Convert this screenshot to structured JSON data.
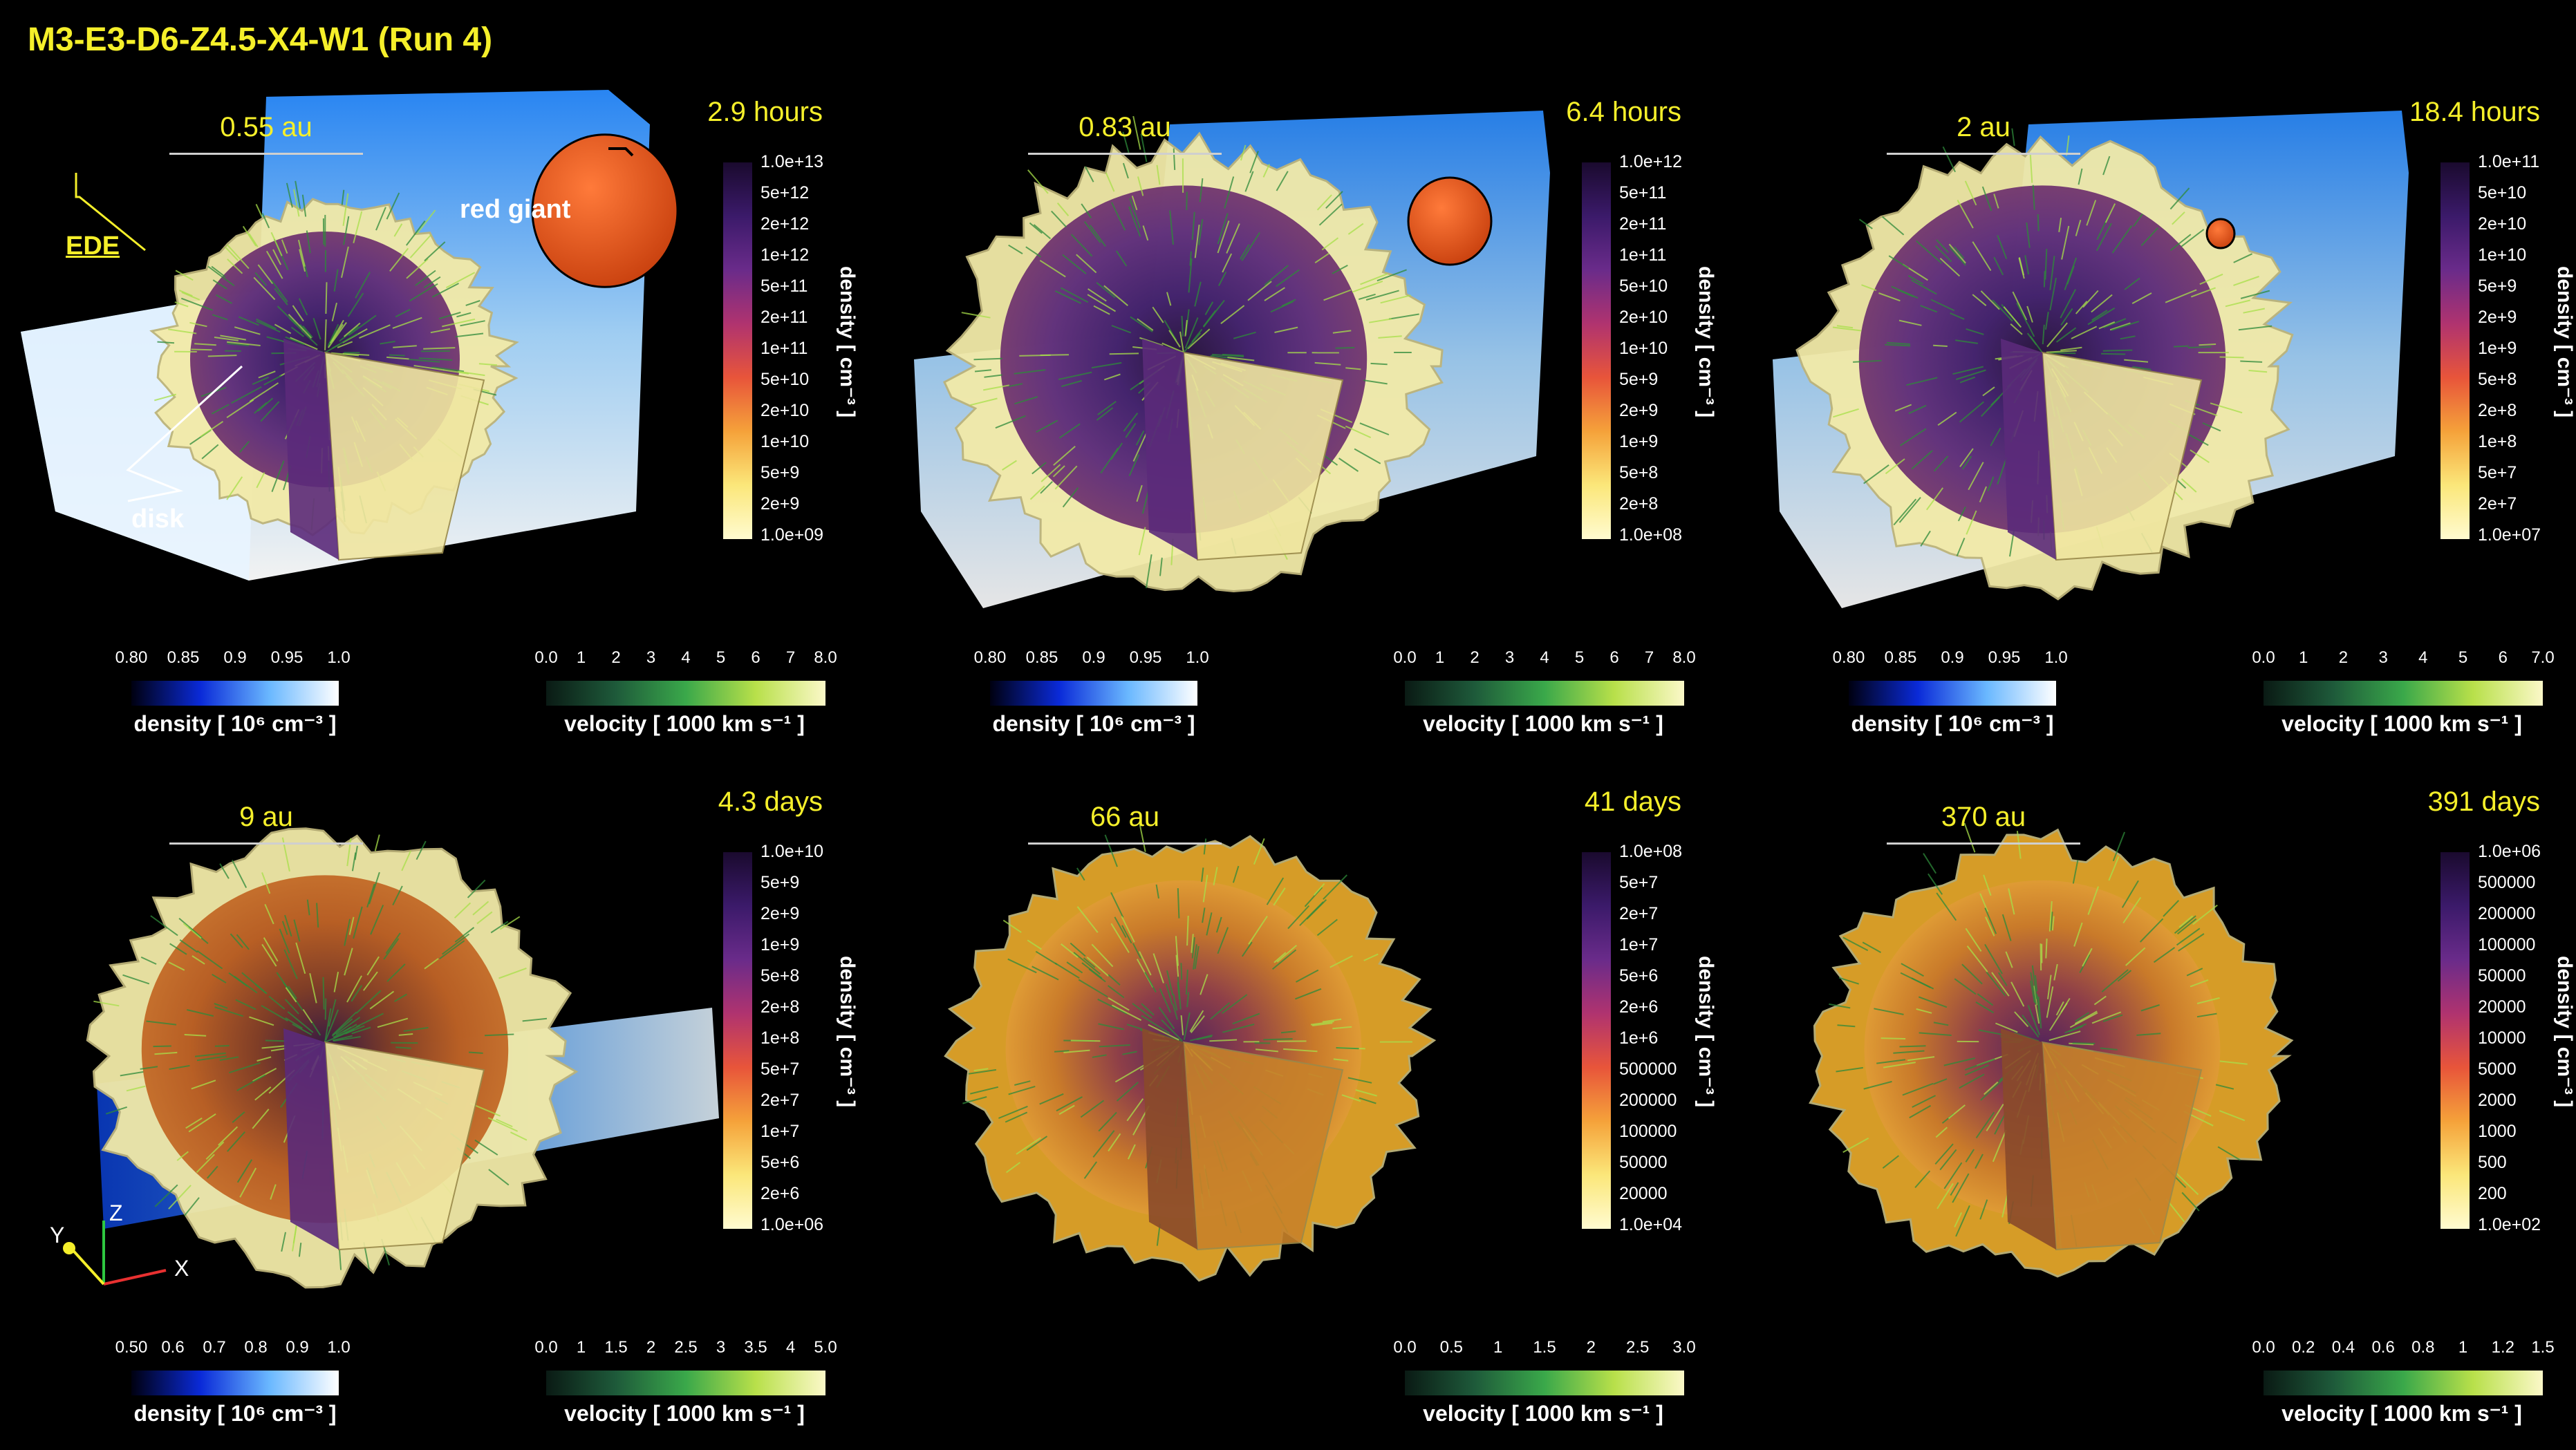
{
  "title": "M3-E3-D6-Z4.5-X4-W1 (Run 4)",
  "colors": {
    "title": "#f5ef2a",
    "label": "#f5ef2a",
    "ede_color": "#ffffff",
    "red_giant": "#e8521a",
    "ejecta": "#f2eaa8",
    "density_purple": "#3b1a6a"
  },
  "panels": [
    {
      "scale": "0.55 au",
      "time": "2.9 hours",
      "density_ticks": [
        "1.0e+13",
        "5e+12",
        "2e+12",
        "1e+12",
        "5e+11",
        "2e+11",
        "1e+11",
        "5e+10",
        "2e+10",
        "1e+10",
        "5e+9",
        "2e+9",
        "1.0e+09"
      ],
      "density_title": "density [ cm⁻³ ]",
      "ede_ticks": [
        "0.80",
        "0.85",
        "0.9",
        "0.95",
        "1.0"
      ],
      "ede_title": "density [ 10⁶ cm⁻³ ]",
      "vel_ticks": [
        "0.0",
        "1",
        "2",
        "3",
        "4",
        "5",
        "6",
        "7",
        "8.0"
      ],
      "vel_title": "velocity [ 1000 km s⁻¹ ]",
      "annotations": {
        "ede": "EDE",
        "disk": "disk",
        "red_giant": "red giant"
      },
      "stage": "early"
    },
    {
      "scale": "0.83 au",
      "time": "6.4 hours",
      "density_ticks": [
        "1.0e+12",
        "5e+11",
        "2e+11",
        "1e+11",
        "5e+10",
        "2e+10",
        "1e+10",
        "5e+9",
        "2e+9",
        "1e+9",
        "5e+8",
        "2e+8",
        "1.0e+08"
      ],
      "density_title": "density [ cm⁻³ ]",
      "ede_ticks": [
        "0.80",
        "0.85",
        "0.9",
        "0.95",
        "1.0"
      ],
      "ede_title": "density [ 10⁶ cm⁻³ ]",
      "vel_ticks": [
        "0.0",
        "1",
        "2",
        "3",
        "4",
        "5",
        "6",
        "7",
        "8.0"
      ],
      "vel_title": "velocity [ 1000 km s⁻¹ ]",
      "stage": "mid"
    },
    {
      "scale": "2 au",
      "time": "18.4 hours",
      "density_ticks": [
        "1.0e+11",
        "5e+10",
        "2e+10",
        "1e+10",
        "5e+9",
        "2e+9",
        "1e+9",
        "5e+8",
        "2e+8",
        "1e+8",
        "5e+7",
        "2e+7",
        "1.0e+07"
      ],
      "density_title": "density [ cm⁻³ ]",
      "ede_ticks": [
        "0.80",
        "0.85",
        "0.9",
        "0.95",
        "1.0"
      ],
      "ede_title": "density [ 10⁶ cm⁻³ ]",
      "vel_ticks": [
        "0.0",
        "1",
        "2",
        "3",
        "4",
        "5",
        "6",
        "7.0"
      ],
      "vel_title": "velocity [ 1000 km s⁻¹ ]",
      "stage": "mid2"
    },
    {
      "scale": "9 au",
      "time": "4.3 days",
      "density_ticks": [
        "1.0e+10",
        "5e+9",
        "2e+9",
        "1e+9",
        "5e+8",
        "2e+8",
        "1e+8",
        "5e+7",
        "2e+7",
        "1e+7",
        "5e+6",
        "2e+6",
        "1.0e+06"
      ],
      "density_title": "density [ cm⁻³ ]",
      "ede_ticks": [
        "0.50",
        "0.6",
        "0.7",
        "0.8",
        "0.9",
        "1.0"
      ],
      "ede_title": "density [ 10⁶ cm⁻³ ]",
      "vel_ticks": [
        "0.0",
        "1",
        "1.5",
        "2",
        "2.5",
        "3",
        "3.5",
        "4",
        "5.0"
      ],
      "vel_title": "velocity [ 1000 km s⁻¹ ]",
      "axes": {
        "x": "X",
        "y": "Y",
        "z": "Z"
      },
      "stage": "late"
    },
    {
      "scale": "66 au",
      "time": "41 days",
      "density_ticks": [
        "1.0e+08",
        "5e+7",
        "2e+7",
        "1e+7",
        "5e+6",
        "2e+6",
        "1e+6",
        "500000",
        "200000",
        "100000",
        "50000",
        "20000",
        "1.0e+04"
      ],
      "density_title": "density [ cm⁻³ ]",
      "vel_ticks": [
        "0.0",
        "0.5",
        "1",
        "1.5",
        "2",
        "2.5",
        "3.0"
      ],
      "vel_title": "velocity [ 1000 km s⁻¹ ]",
      "stage": "gold"
    },
    {
      "scale": "370 au",
      "time": "391 days",
      "density_ticks": [
        "1.0e+06",
        "500000",
        "200000",
        "100000",
        "50000",
        "20000",
        "10000",
        "5000",
        "2000",
        "1000",
        "500",
        "200",
        "1.0e+02"
      ],
      "density_title": "density [ cm⁻³ ]",
      "vel_ticks": [
        "0.0",
        "0.2",
        "0.4",
        "0.6",
        "0.8",
        "1",
        "1.2",
        "1.5"
      ],
      "vel_title": "velocity [ 1000 km s⁻¹ ]",
      "stage": "gold2"
    }
  ]
}
